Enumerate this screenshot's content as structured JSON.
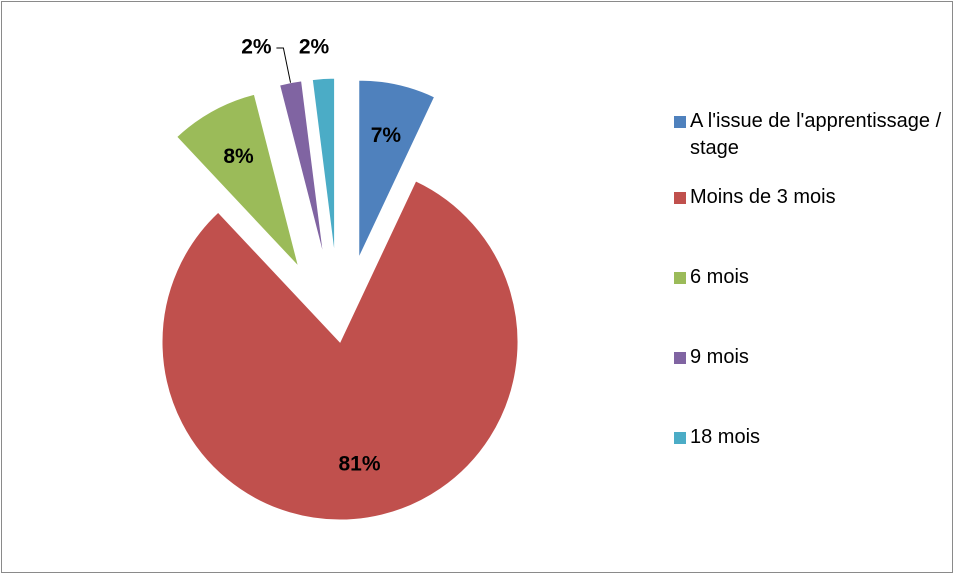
{
  "chart_data": {
    "type": "pie",
    "categories": [
      "A l'issue de l'apprentissage / stage",
      "Moins de 3 mois",
      "6 mois",
      "9 mois",
      "18 mois"
    ],
    "values": [
      7,
      81,
      8,
      2,
      2
    ],
    "value_labels": [
      "7%",
      "81%",
      "8%",
      "2%",
      "2%"
    ],
    "colors": [
      "#4f81bd",
      "#c0504d",
      "#9bbb59",
      "#8064a2",
      "#4bacc6"
    ],
    "legend": "right"
  }
}
